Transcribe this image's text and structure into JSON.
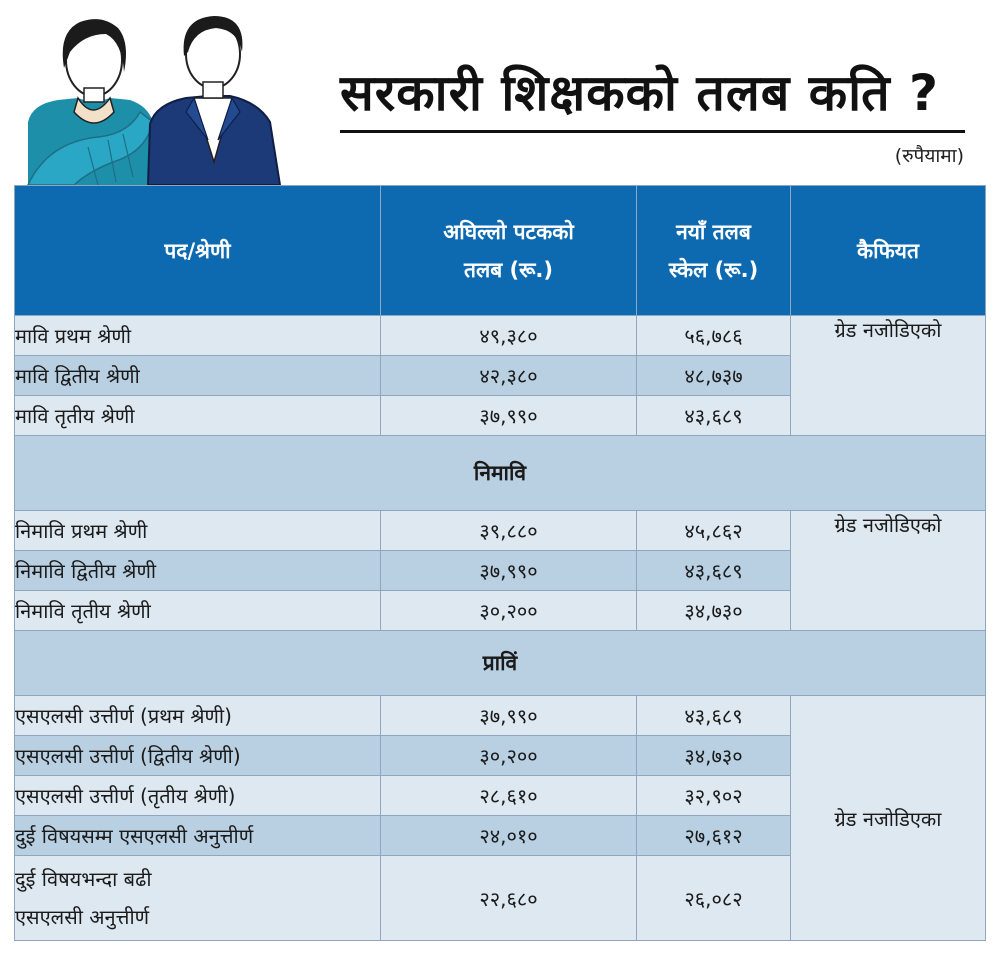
{
  "header": {
    "title": "सरकारी शिक्षकको तलब कति ?",
    "unit": "(रुपैयामा)"
  },
  "columns": {
    "position": "पद/श्रेणी",
    "prev_salary": [
      "अघिल्लो पटकको",
      "तलब (रू.)"
    ],
    "new_salary": [
      "नयाँ तलब",
      "स्केल (रू.)"
    ],
    "remarks": "कैफियत"
  },
  "groups": [
    {
      "heading": "",
      "remark": "ग्रेड नजोडिएको",
      "rows": [
        {
          "position": "मावि प्रथम श्रेणी",
          "prev": "४९,३८०",
          "new": "५६,७८६"
        },
        {
          "position": "मावि द्वितीय श्रेणी",
          "prev": "४२,३८०",
          "new": "४८,७३७"
        },
        {
          "position": "मावि तृतीय श्रेणी",
          "prev": "३७,९९०",
          "new": "४३,६८९"
        }
      ]
    },
    {
      "heading": "निमावि",
      "remark": "ग्रेड नजोडिएको",
      "rows": [
        {
          "position": "निमावि प्रथम श्रेणी",
          "prev": "३९,८८०",
          "new": "४५,८६२"
        },
        {
          "position": "निमावि द्वितीय श्रेणी",
          "prev": "३७,९९०",
          "new": "४३,६८९"
        },
        {
          "position": "निमावि तृतीय श्रेणी",
          "prev": "३०,२००",
          "new": "३४,७३०"
        }
      ]
    },
    {
      "heading": "प्राविं",
      "remark": "ग्रेड नजोडिएका",
      "rows": [
        {
          "position": "एसएलसी उत्तीर्ण (प्रथम श्रेणी)",
          "prev": "३७,९९०",
          "new": "४३,६८९"
        },
        {
          "position": "एसएलसी उत्तीर्ण (द्वितीय श्रेणी)",
          "prev": "३०,२००",
          "new": "३४,७३०"
        },
        {
          "position": "एसएलसी उत्तीर्ण (तृतीय श्रेणी)",
          "prev": "२८,६१०",
          "new": "३२,९०२"
        },
        {
          "position": "दुई विषयसम्म एसएलसी अनुत्तीर्ण",
          "prev": "२४,०१०",
          "new": "२७,६१२"
        },
        {
          "position_lines": [
            "दुई विषयभन्दा बढी",
            "एसएलसी अनुत्तीर्ण"
          ],
          "prev": "२२,६८०",
          "new": "२६,०८२"
        }
      ]
    }
  ],
  "colors": {
    "header_bg": "#0d69b0",
    "row_light": "#dde8f1",
    "row_dark": "#b9d0e3"
  }
}
